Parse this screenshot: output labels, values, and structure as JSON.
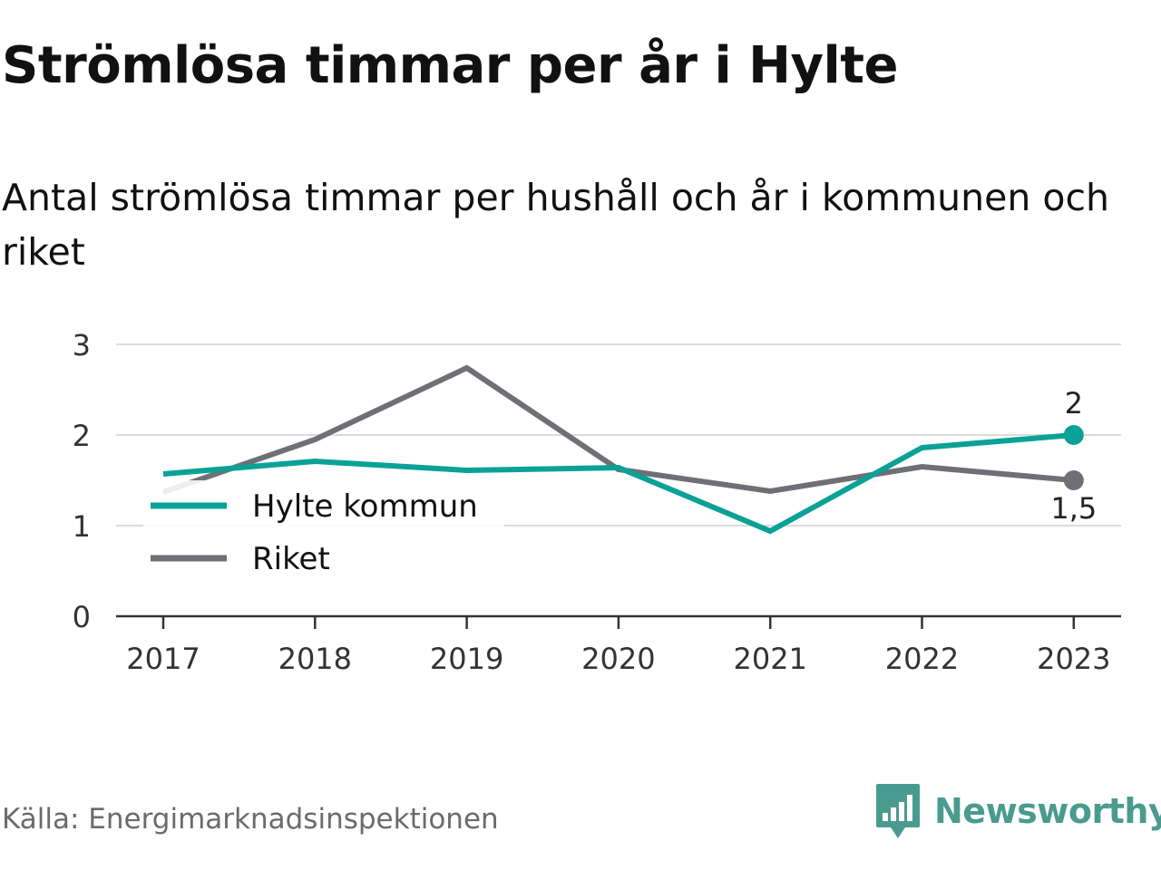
{
  "title": "Strömlösa timmar per år i Hylte",
  "subtitle": "Antal strömlösa timmar per hushåll och år i kommunen och riket",
  "source": "Källa: Energimarknadsinspektionen",
  "brand": {
    "name": "Newsworthy",
    "icon": "newsworthy-logo-icon",
    "color": "#4a9b8f"
  },
  "chart_data": {
    "type": "line",
    "x": [
      "2017",
      "2018",
      "2019",
      "2020",
      "2021",
      "2022",
      "2023"
    ],
    "ylim": [
      0,
      3
    ],
    "yticks": [
      "0",
      "1",
      "2",
      "3"
    ],
    "grid": true,
    "legend": "left",
    "series": [
      {
        "name": "Hylte kommun",
        "color": "#0aa196",
        "values": [
          1.57,
          1.71,
          1.61,
          1.64,
          0.94,
          1.86,
          2.0
        ],
        "end_label": "2"
      },
      {
        "name": "Riket",
        "color": "#6f6f76",
        "values": [
          1.37,
          1.95,
          2.74,
          1.62,
          1.38,
          1.65,
          1.5
        ],
        "end_label": "1,5"
      }
    ]
  }
}
